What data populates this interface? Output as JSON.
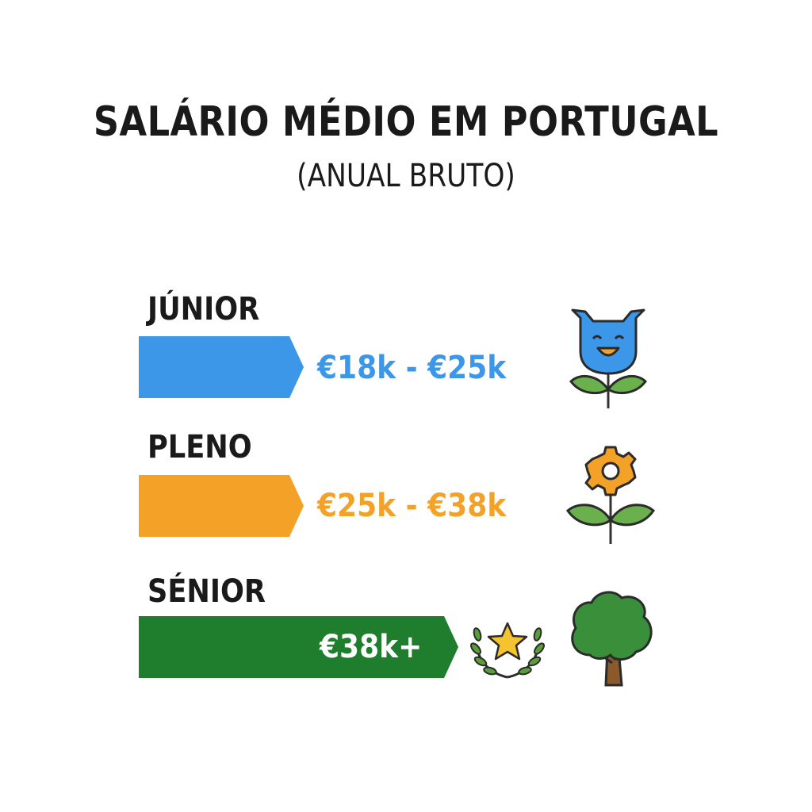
{
  "title": "SALÁRIO MÉDIO EM PORTUGAL",
  "subtitle": "(ANUAL BRUTO)",
  "levels": [
    {
      "label": "JÚNIOR",
      "range": "€18k - €25k",
      "color": "#3d97e8",
      "icon": "smiling-sprout-icon"
    },
    {
      "label": "PLENO",
      "range": "€25k - €38k",
      "color": "#f4a227",
      "icon": "gear-flower-icon"
    },
    {
      "label": "SÉNIOR",
      "range": "€38k+",
      "color": "#1f7d2e",
      "icon": "tree-icon",
      "badge_icon": "laurel-star-icon"
    }
  ]
}
